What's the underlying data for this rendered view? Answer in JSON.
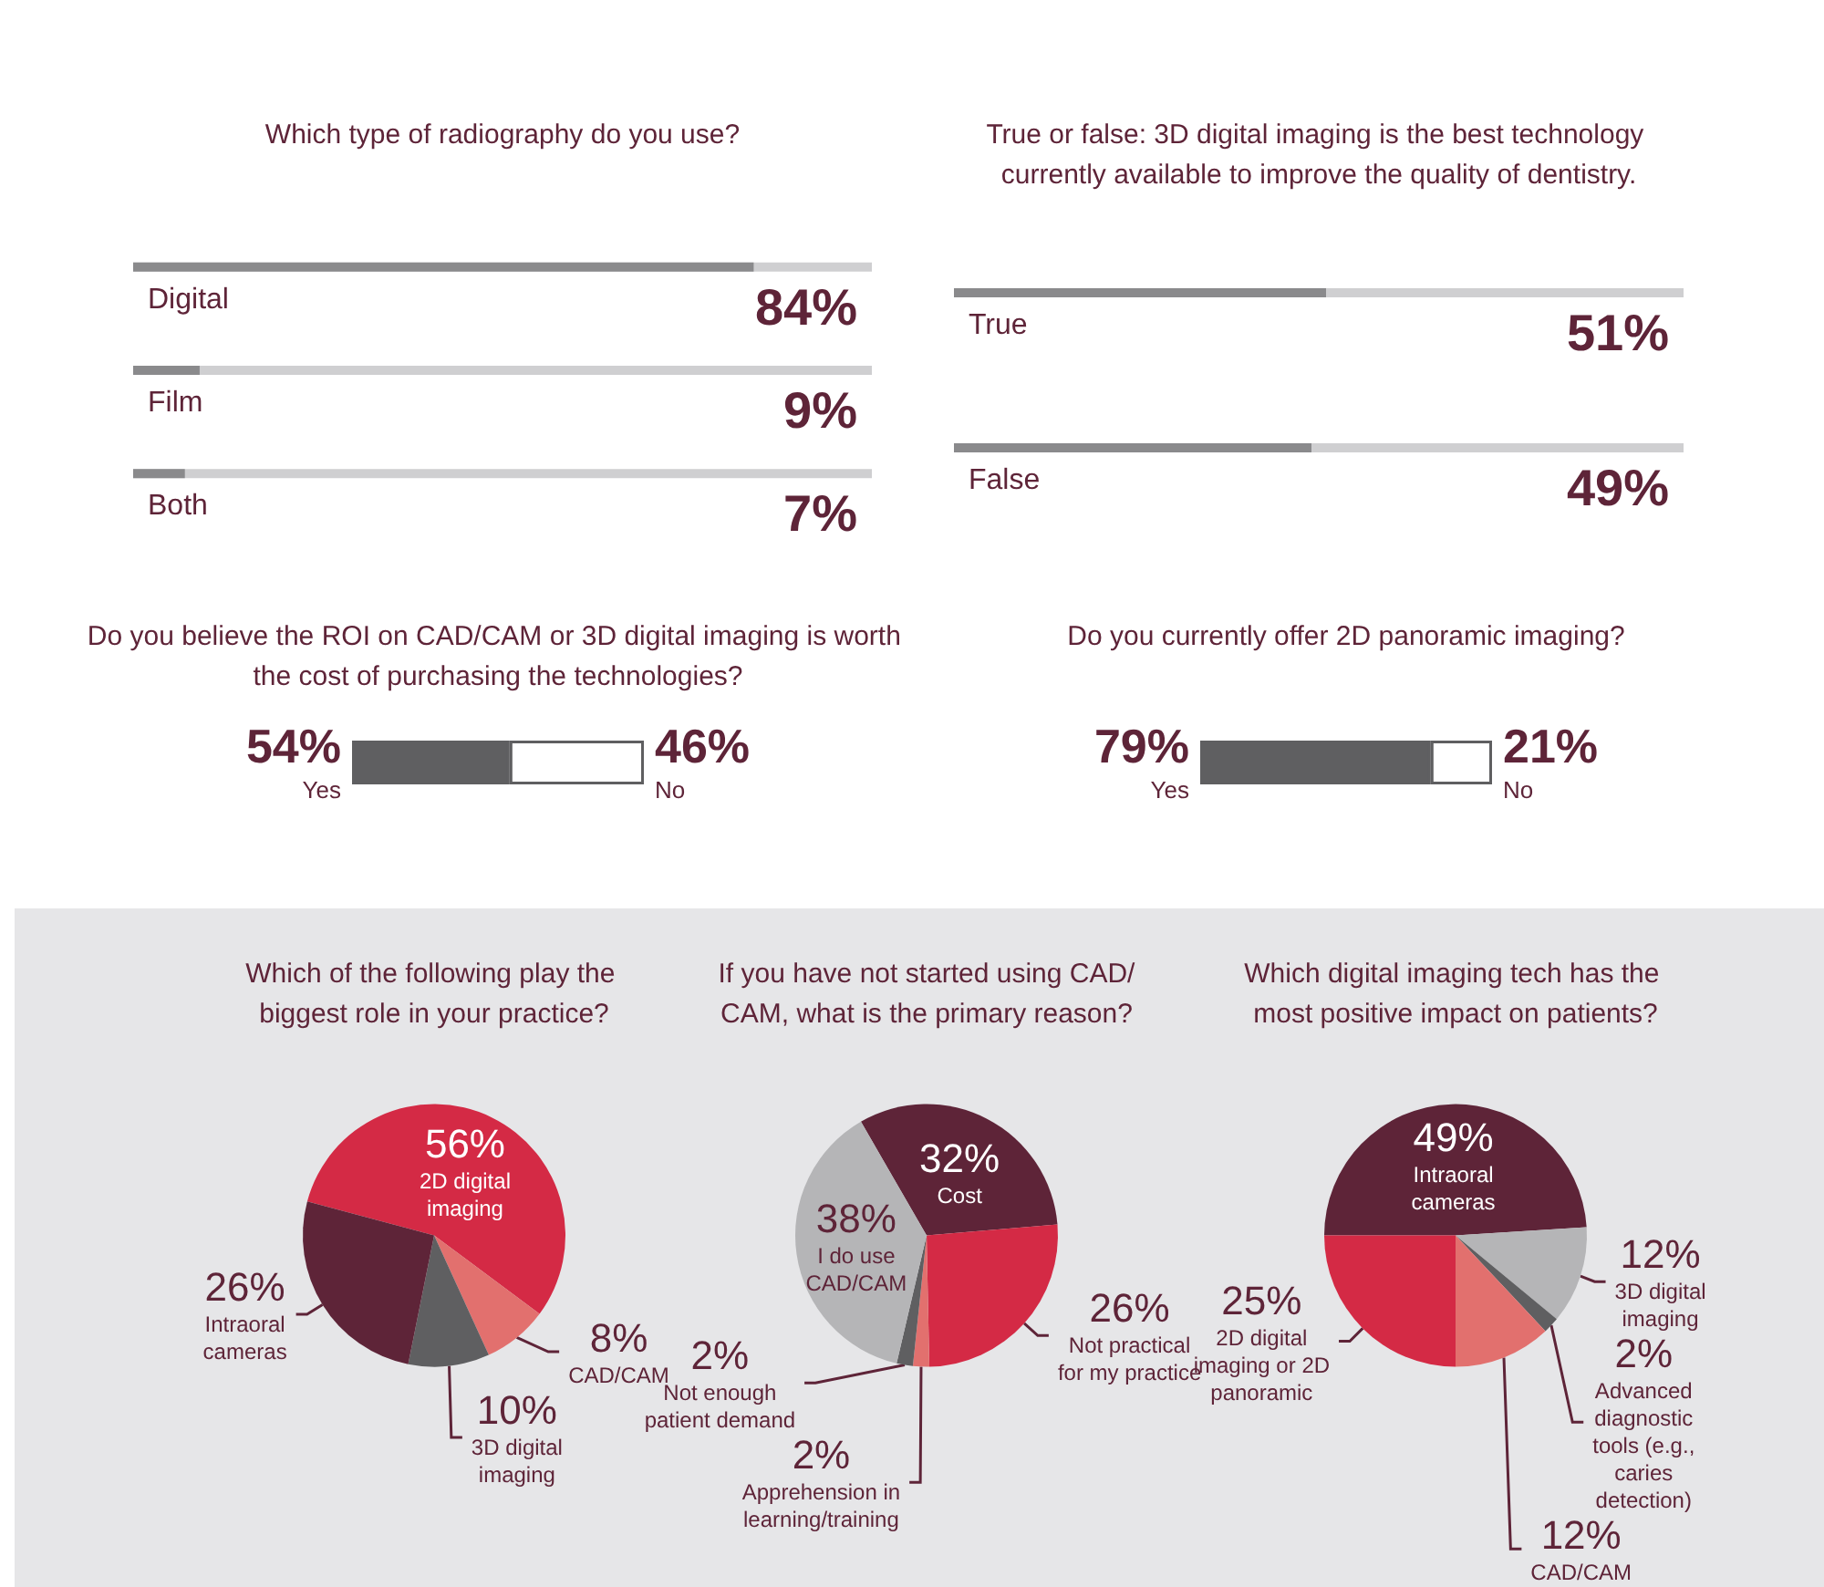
{
  "chart_data": [
    {
      "type": "bar",
      "orientation": "horizontal",
      "title": "Which type of radiography do you use?",
      "categories": [
        "Digital",
        "Film",
        "Both"
      ],
      "values": [
        84,
        9,
        7
      ],
      "value_labels": [
        "84%",
        "9%",
        "7%"
      ],
      "color": "#8a8a8c",
      "xlim": [
        0,
        100
      ],
      "tick_labels": false
    },
    {
      "type": "bar",
      "orientation": "horizontal",
      "title": "True or false: 3D digital imaging is the best technology currently available to improve the quality of dentistry.",
      "categories": [
        "True",
        "False"
      ],
      "values": [
        51,
        49
      ],
      "value_labels": [
        "51%",
        "49%"
      ],
      "color": "#8a8a8c",
      "xlim": [
        0,
        100
      ],
      "tick_labels": false
    },
    {
      "type": "bar",
      "orientation": "horizontal",
      "stacked": true,
      "title": "Do you believe the ROI on CAD/CAM or 3D digital imaging is worth the cost of purchasing the technologies?",
      "categories": [
        null
      ],
      "xlim": [
        0,
        100
      ],
      "tick_labels": false,
      "series": [
        {
          "name": "Yes",
          "color": "#5f5f61",
          "values": [
            54
          ],
          "value_labels": [
            "54%"
          ]
        },
        {
          "name": "No",
          "color": "#ffffff",
          "values": [
            46
          ],
          "value_labels": [
            "46%"
          ]
        }
      ]
    },
    {
      "type": "bar",
      "orientation": "horizontal",
      "stacked": true,
      "title": "Do you currently offer 2D panoramic imaging?",
      "categories": [
        null
      ],
      "xlim": [
        0,
        100
      ],
      "tick_labels": false,
      "series": [
        {
          "name": "Yes",
          "color": "#5f5f61",
          "values": [
            79
          ],
          "value_labels": [
            "79%"
          ]
        },
        {
          "name": "No",
          "color": "#ffffff",
          "values": [
            21
          ],
          "value_labels": [
            "21%"
          ]
        }
      ]
    },
    {
      "type": "pie",
      "title": "Which of the following play the biggest role in your practice?",
      "categories": [
        "2D digital imaging",
        "CAD/CAM",
        "3D digital imaging",
        "Intraoral cameras"
      ],
      "values": [
        56,
        8,
        10,
        26
      ],
      "value_labels": [
        "56%",
        "8%",
        "10%",
        "26%"
      ],
      "colors": [
        "#d42a45",
        "#e2706e",
        "#5f5f61",
        "#5e2438"
      ]
    },
    {
      "type": "pie",
      "title": "If you have not started using CAD/CAM, what is the primary reason?",
      "categories": [
        "Cost",
        "Not practical for my practice",
        "Apprehension in learning/training",
        "Not enough patient demand",
        "I do use CAD/CAM"
      ],
      "values": [
        32,
        26,
        2,
        2,
        38
      ],
      "value_labels": [
        "32%",
        "26%",
        "2%",
        "2%",
        "38%"
      ],
      "colors": [
        "#5e2438",
        "#d42a45",
        "#e2706e",
        "#5f5f61",
        "#b5b5b7"
      ]
    },
    {
      "type": "pie",
      "title": "Which digital imaging tech has the most positive impact on patients?",
      "categories": [
        "Intraoral cameras",
        "3D digital imaging",
        "Advanced diagnostic tools (e.g., caries detection)",
        "CAD/CAM",
        "2D digital imaging or 2D panoramic"
      ],
      "values": [
        49,
        12,
        2,
        12,
        25
      ],
      "value_labels": [
        "49%",
        "12%",
        "2%",
        "12%",
        "25%"
      ],
      "colors": [
        "#5e2438",
        "#b5b5b7",
        "#5f5f61",
        "#e2706e",
        "#d42a45"
      ]
    }
  ]
}
